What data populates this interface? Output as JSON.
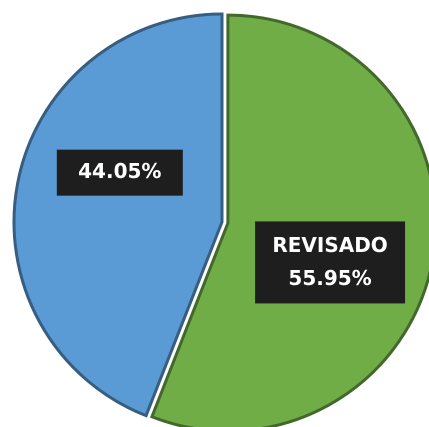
{
  "chart_data": {
    "type": "pie",
    "categories": [
      "REVISADO",
      null
    ],
    "values": [
      55.95,
      44.05
    ],
    "value_labels": [
      "55.95%",
      "44.05%"
    ],
    "colors": [
      "#70ad47",
      "#5b9bd5"
    ]
  }
}
